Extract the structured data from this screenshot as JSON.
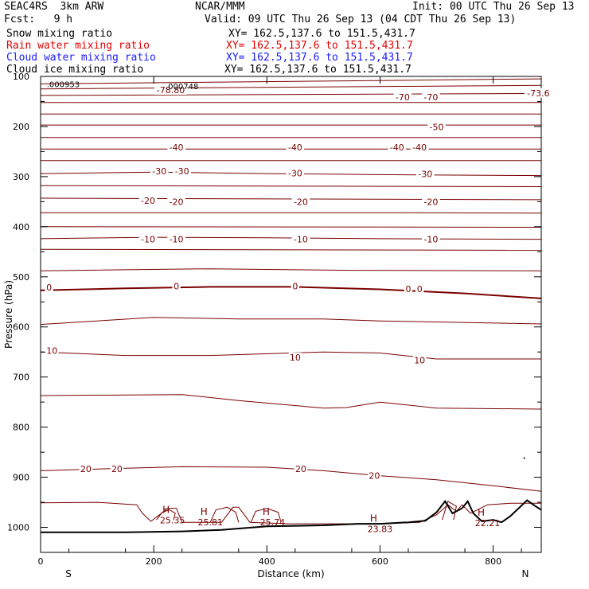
{
  "header": {
    "model": "SEAC4RS  3km ARW",
    "org": "NCAR/MMM",
    "init": "Init: 00 UTC Thu 26 Sep 13",
    "fcst": "Fcst:   9 h",
    "valid": "Valid: 09 UTC Thu 26 Sep 13 (04 CDT Thu 26 Sep 13)"
  },
  "fields": [
    {
      "name": "Snow mixing ratio",
      "xy": "XY= 162.5,137.6 to 151.5,431.7",
      "color": "#000000"
    },
    {
      "name": "Rain water mixing ratio",
      "xy": "XY= 162.5,137.6 to 151.5,431.7",
      "color": "#e00000"
    },
    {
      "name": "Cloud water mixing ratio",
      "xy": "XY= 162.5,137.6 to 151.5,431.7",
      "color": "#1a1aff"
    },
    {
      "name": "Cloud ice mixing ratio",
      "xy": "XY= 162.5,137.6 to 151.5,431.7",
      "color": "#000000"
    }
  ],
  "chart_data": {
    "type": "line",
    "xlabel": "Distance (km)",
    "ylabel": "Pressure (hPa)",
    "xlim": [
      0,
      885
    ],
    "ylim": [
      1050,
      100
    ],
    "xticks": [
      0,
      200,
      400,
      600,
      800
    ],
    "yticks": [
      1000,
      900,
      800,
      700,
      600,
      500,
      400,
      300,
      200,
      100
    ],
    "ytick_labels": [
      "1000",
      "900",
      "800",
      "700",
      "600",
      "500",
      "400",
      "300",
      "200",
      "100"
    ],
    "left_end_label": "S",
    "right_end_label": "N",
    "contour_color": "#7a0000",
    "contour_labels": [
      {
        "text": "-78.80",
        "x": 230,
        "y": 127
      },
      {
        "text": "-73.6",
        "x": 880,
        "y": 133
      },
      {
        "text": "-70",
        "x": 640,
        "y": 141
      },
      {
        "text": "-70",
        "x": 690,
        "y": 141
      },
      {
        "text": "-50",
        "x": 700,
        "y": 201
      },
      {
        "text": "-40",
        "x": 240,
        "y": 241
      },
      {
        "text": "-40",
        "x": 450,
        "y": 241
      },
      {
        "text": "-40",
        "x": 630,
        "y": 241
      },
      {
        "text": "-40",
        "x": 670,
        "y": 241
      },
      {
        "text": "-30",
        "x": 210,
        "y": 289
      },
      {
        "text": "-30",
        "x": 250,
        "y": 289
      },
      {
        "text": "-30",
        "x": 450,
        "y": 293
      },
      {
        "text": "-30",
        "x": 680,
        "y": 295
      },
      {
        "text": "-20",
        "x": 190,
        "y": 348
      },
      {
        "text": "-20",
        "x": 240,
        "y": 350
      },
      {
        "text": "-20",
        "x": 460,
        "y": 350
      },
      {
        "text": "-20",
        "x": 690,
        "y": 350
      },
      {
        "text": "-10",
        "x": 190,
        "y": 425
      },
      {
        "text": "-10",
        "x": 240,
        "y": 425
      },
      {
        "text": "-10",
        "x": 460,
        "y": 425
      },
      {
        "text": "-10",
        "x": 690,
        "y": 425
      },
      {
        "text": "0",
        "x": 15,
        "y": 521
      },
      {
        "text": "0",
        "x": 240,
        "y": 519
      },
      {
        "text": "0",
        "x": 450,
        "y": 519
      },
      {
        "text": "0",
        "x": 650,
        "y": 524
      },
      {
        "text": "0",
        "x": 670,
        "y": 524
      },
      {
        "text": "10",
        "x": 20,
        "y": 647
      },
      {
        "text": "10",
        "x": 450,
        "y": 661
      },
      {
        "text": "10",
        "x": 670,
        "y": 666
      },
      {
        "text": "20",
        "x": 80,
        "y": 883
      },
      {
        "text": "20",
        "x": 135,
        "y": 883
      },
      {
        "text": "20",
        "x": 460,
        "y": 883
      },
      {
        "text": "20",
        "x": 590,
        "y": 897
      }
    ],
    "maxima": [
      {
        "label": "H",
        "value": "25.35",
        "x": 233,
        "y": 976
      },
      {
        "label": "H",
        "value": "25.81",
        "x": 300,
        "y": 980
      },
      {
        "label": "H",
        "value": "25.74",
        "x": 410,
        "y": 980
      },
      {
        "label": "H",
        "value": "23.83",
        "x": 600,
        "y": 994
      },
      {
        "label": "H",
        "value": "22.21",
        "x": 790,
        "y": 982
      }
    ],
    "top_values": [
      {
        "text": ".000953",
        "x": 40,
        "y": 115
      },
      {
        "text": ".000748",
        "x": 250,
        "y": 119
      }
    ]
  }
}
